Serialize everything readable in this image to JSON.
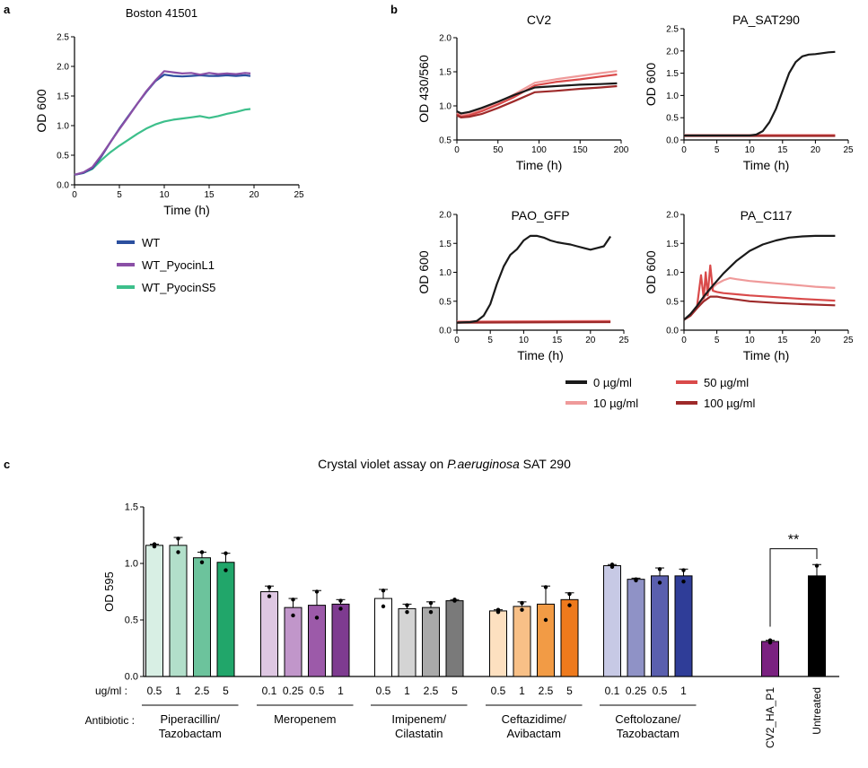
{
  "panel_letters": {
    "a": "a",
    "b": "b",
    "c": "c"
  },
  "chart_data": [
    {
      "id": "a",
      "type": "line",
      "title": "Boston 41501",
      "xlabel": "Time (h)",
      "ylabel": "OD 600",
      "xlim": [
        0,
        25
      ],
      "ylim": [
        0,
        2.5
      ],
      "xticks": [
        "0",
        "5",
        "10",
        "15",
        "20",
        "25"
      ],
      "yticks": [
        "0.0",
        "0.5",
        "1.0",
        "1.5",
        "2.0",
        "2.5"
      ],
      "legend_position": "below",
      "series": [
        {
          "name": "WT",
          "color": "#2b4f9e",
          "x": [
            0,
            1,
            2,
            3,
            4,
            5,
            6,
            7,
            8,
            9,
            10,
            11,
            12,
            13,
            14,
            15,
            16,
            17,
            18,
            19,
            19.6
          ],
          "y": [
            0.17,
            0.2,
            0.28,
            0.48,
            0.72,
            0.95,
            1.16,
            1.37,
            1.57,
            1.75,
            1.86,
            1.84,
            1.83,
            1.84,
            1.85,
            1.84,
            1.84,
            1.85,
            1.84,
            1.85,
            1.84
          ]
        },
        {
          "name": "WT_PyocinL1",
          "color": "#8a4fa6",
          "x": [
            0,
            1,
            2,
            3,
            4,
            5,
            6,
            7,
            8,
            9,
            10,
            11,
            12,
            13,
            14,
            15,
            16,
            17,
            18,
            19,
            19.6
          ],
          "y": [
            0.17,
            0.21,
            0.3,
            0.5,
            0.72,
            0.94,
            1.15,
            1.37,
            1.58,
            1.76,
            1.92,
            1.9,
            1.88,
            1.89,
            1.86,
            1.89,
            1.87,
            1.88,
            1.87,
            1.89,
            1.88
          ]
        },
        {
          "name": "WT_PyocinS5",
          "color": "#3dbf8b",
          "x": [
            0,
            1,
            2,
            3,
            4,
            5,
            6,
            7,
            8,
            9,
            10,
            11,
            12,
            13,
            14,
            15,
            16,
            17,
            18,
            19,
            19.6
          ],
          "y": [
            0.17,
            0.2,
            0.27,
            0.42,
            0.55,
            0.66,
            0.76,
            0.86,
            0.95,
            1.02,
            1.07,
            1.1,
            1.12,
            1.14,
            1.16,
            1.13,
            1.16,
            1.2,
            1.23,
            1.27,
            1.28
          ]
        }
      ]
    },
    {
      "id": "b1",
      "type": "line",
      "title": "CV2",
      "xlabel": "Time (h)",
      "ylabel": "OD 430/560",
      "xlim": [
        0,
        200
      ],
      "ylim": [
        0.5,
        2.0
      ],
      "xticks": [
        "0",
        "50",
        "100",
        "150",
        "200"
      ],
      "yticks": [
        "0.5",
        "1.0",
        "1.5",
        "2.0"
      ],
      "series": [
        {
          "name": "0 µg/ml",
          "color": "#1a1a1a",
          "x": [
            0,
            5,
            15,
            30,
            50,
            70,
            95,
            120,
            150,
            175,
            195
          ],
          "y": [
            0.92,
            0.89,
            0.91,
            0.97,
            1.06,
            1.16,
            1.27,
            1.29,
            1.31,
            1.32,
            1.33
          ]
        },
        {
          "name": "10 µg/ml",
          "color": "#ef9a9a",
          "x": [
            0,
            5,
            15,
            30,
            50,
            70,
            95,
            120,
            150,
            175,
            195
          ],
          "y": [
            0.9,
            0.86,
            0.88,
            0.95,
            1.05,
            1.17,
            1.34,
            1.39,
            1.44,
            1.48,
            1.51
          ]
        },
        {
          "name": "50 µg/ml",
          "color": "#d94a4a",
          "x": [
            0,
            5,
            15,
            30,
            50,
            70,
            95,
            120,
            150,
            175,
            195
          ],
          "y": [
            0.88,
            0.84,
            0.86,
            0.92,
            1.02,
            1.13,
            1.3,
            1.35,
            1.39,
            1.43,
            1.46
          ]
        },
        {
          "name": "100 µg/ml",
          "color": "#9e2a2a",
          "x": [
            0,
            5,
            15,
            30,
            50,
            70,
            95,
            120,
            150,
            175,
            195
          ],
          "y": [
            0.86,
            0.83,
            0.84,
            0.88,
            0.97,
            1.07,
            1.2,
            1.22,
            1.25,
            1.27,
            1.29
          ]
        }
      ]
    },
    {
      "id": "b2",
      "type": "line",
      "title": "PA_SAT290",
      "xlabel": "Time (h)",
      "ylabel": "OD 600",
      "xlim": [
        0,
        25
      ],
      "ylim": [
        0,
        2.5
      ],
      "xticks": [
        "0",
        "5",
        "10",
        "15",
        "20",
        "25"
      ],
      "yticks": [
        "0.0",
        "0.5",
        "1.0",
        "1.5",
        "2.0",
        "2.5"
      ],
      "series": [
        {
          "name": "0 µg/ml",
          "color": "#1a1a1a",
          "x": [
            0,
            5,
            10,
            11,
            12,
            13,
            14,
            15,
            16,
            17,
            18,
            19,
            20,
            21,
            22,
            23
          ],
          "y": [
            0.1,
            0.1,
            0.1,
            0.12,
            0.2,
            0.4,
            0.7,
            1.1,
            1.5,
            1.75,
            1.88,
            1.92,
            1.93,
            1.95,
            1.97,
            1.98
          ]
        },
        {
          "name": "10 µg/ml",
          "color": "#ef9a9a",
          "x": [
            0,
            23
          ],
          "y": [
            0.11,
            0.11
          ]
        },
        {
          "name": "50 µg/ml",
          "color": "#d94a4a",
          "x": [
            0,
            23
          ],
          "y": [
            0.1,
            0.1
          ]
        },
        {
          "name": "100 µg/ml",
          "color": "#9e2a2a",
          "x": [
            0,
            23
          ],
          "y": [
            0.09,
            0.09
          ]
        }
      ]
    },
    {
      "id": "b3",
      "type": "line",
      "title": "PAO_GFP",
      "xlabel": "Time (h)",
      "ylabel": "OD 600",
      "xlim": [
        0,
        25
      ],
      "ylim": [
        0,
        2.0
      ],
      "xticks": [
        "0",
        "5",
        "10",
        "15",
        "20",
        "25"
      ],
      "yticks": [
        "0.0",
        "0.5",
        "1.0",
        "1.5",
        "2.0"
      ],
      "series": [
        {
          "name": "0 µg/ml",
          "color": "#1a1a1a",
          "x": [
            0,
            2,
            3,
            4,
            5,
            6,
            7,
            8,
            9,
            10,
            11,
            12,
            13,
            14,
            15,
            16,
            17,
            18,
            19,
            20,
            21,
            22,
            23
          ],
          "y": [
            0.13,
            0.14,
            0.16,
            0.25,
            0.45,
            0.8,
            1.1,
            1.3,
            1.4,
            1.55,
            1.63,
            1.63,
            1.6,
            1.55,
            1.52,
            1.5,
            1.48,
            1.45,
            1.42,
            1.39,
            1.42,
            1.45,
            1.62
          ]
        },
        {
          "name": "10 µg/ml",
          "color": "#ef9a9a",
          "x": [
            0,
            23
          ],
          "y": [
            0.15,
            0.16
          ]
        },
        {
          "name": "50 µg/ml",
          "color": "#d94a4a",
          "x": [
            0,
            23
          ],
          "y": [
            0.14,
            0.15
          ]
        },
        {
          "name": "100 µg/ml",
          "color": "#9e2a2a",
          "x": [
            0,
            23
          ],
          "y": [
            0.13,
            0.14
          ]
        }
      ]
    },
    {
      "id": "b4",
      "type": "line",
      "title": "PA_C117",
      "xlabel": "Time (h)",
      "ylabel": "OD 600",
      "xlim": [
        0,
        25
      ],
      "ylim": [
        0,
        2.0
      ],
      "xticks": [
        "0",
        "5",
        "10",
        "15",
        "20",
        "25"
      ],
      "yticks": [
        "0.0",
        "0.5",
        "1.0",
        "1.5",
        "2.0"
      ],
      "series": [
        {
          "name": "0 µg/ml",
          "color": "#1a1a1a",
          "x": [
            0,
            1,
            2,
            3,
            4,
            5,
            6,
            8,
            10,
            12,
            14,
            16,
            18,
            20,
            22,
            23
          ],
          "y": [
            0.18,
            0.28,
            0.42,
            0.58,
            0.72,
            0.85,
            0.98,
            1.2,
            1.37,
            1.48,
            1.55,
            1.6,
            1.62,
            1.63,
            1.63,
            1.63
          ]
        },
        {
          "name": "10 µg/ml",
          "color": "#ef9a9a",
          "x": [
            0,
            1,
            2,
            3,
            4,
            5,
            6,
            7,
            8,
            10,
            12,
            14,
            16,
            18,
            20,
            23
          ],
          "y": [
            0.18,
            0.27,
            0.4,
            0.55,
            0.7,
            0.8,
            0.86,
            0.9,
            0.88,
            0.85,
            0.83,
            0.81,
            0.79,
            0.77,
            0.75,
            0.73
          ]
        },
        {
          "name": "50 µg/ml",
          "color": "#d94a4a",
          "x": [
            0,
            1,
            2,
            2.6,
            3,
            3.3,
            3.6,
            4,
            4.4,
            5,
            6,
            8,
            10,
            14,
            18,
            23
          ],
          "y": [
            0.18,
            0.26,
            0.42,
            0.95,
            0.55,
            1.0,
            0.6,
            1.12,
            0.68,
            0.66,
            0.64,
            0.62,
            0.6,
            0.57,
            0.54,
            0.51
          ]
        },
        {
          "name": "100 µg/ml",
          "color": "#9e2a2a",
          "x": [
            0,
            1,
            2,
            3,
            4,
            5,
            6,
            8,
            10,
            14,
            18,
            23
          ],
          "y": [
            0.18,
            0.25,
            0.38,
            0.5,
            0.58,
            0.58,
            0.56,
            0.53,
            0.5,
            0.47,
            0.45,
            0.43
          ]
        }
      ]
    },
    {
      "id": "c",
      "type": "bar",
      "title_prefix": "Crystal violet assay on ",
      "title_italic": "P.aeruginosa",
      "title_suffix": " SAT 290",
      "ylabel": "OD 595",
      "ylim": [
        0,
        1.5
      ],
      "yticks": [
        "0.0",
        "0.5",
        "1.0",
        "1.5"
      ],
      "conc_label": "ug/ml :",
      "antibiotic_label": "Antibiotic :",
      "significance": {
        "label": "**",
        "between": [
          "CV2_HA_P1",
          "Untreated"
        ]
      },
      "groups": [
        {
          "name_lines": [
            "Piperacillin/",
            "Tazobactam"
          ],
          "bars": [
            {
              "label": "0.5",
              "value": 1.16,
              "err": 0.01,
              "points": [
                1.15,
                1.17
              ],
              "color": "#d8efe4"
            },
            {
              "label": "1",
              "value": 1.16,
              "err": 0.07,
              "points": [
                1.1,
                1.22
              ],
              "color": "#b2dfca"
            },
            {
              "label": "2.5",
              "value": 1.05,
              "err": 0.05,
              "points": [
                1.01,
                1.1
              ],
              "color": "#6cc39c"
            },
            {
              "label": "5",
              "value": 1.01,
              "err": 0.08,
              "points": [
                0.94,
                1.09
              ],
              "color": "#21a66a"
            }
          ]
        },
        {
          "name_lines": [
            "Meropenem"
          ],
          "bars": [
            {
              "label": "0.1",
              "value": 0.75,
              "err": 0.05,
              "points": [
                0.71,
                0.79
              ],
              "color": "#dec7e2"
            },
            {
              "label": "0.25",
              "value": 0.61,
              "err": 0.08,
              "points": [
                0.54,
                0.68
              ],
              "color": "#c196ca"
            },
            {
              "label": "0.5",
              "value": 0.63,
              "err": 0.13,
              "points": [
                0.52,
                0.75
              ],
              "color": "#9c5aa9"
            },
            {
              "label": "1",
              "value": 0.64,
              "err": 0.04,
              "points": [
                0.6,
                0.67
              ],
              "color": "#7e3b90"
            }
          ]
        },
        {
          "name_lines": [
            "Imipenem/",
            "Cilastatin"
          ],
          "bars": [
            {
              "label": "0.5",
              "value": 0.69,
              "err": 0.08,
              "points": [
                0.62,
                0.76
              ],
              "color": "#ffffff"
            },
            {
              "label": "1",
              "value": 0.6,
              "err": 0.04,
              "points": [
                0.57,
                0.63
              ],
              "color": "#d4d4d4"
            },
            {
              "label": "2.5",
              "value": 0.61,
              "err": 0.05,
              "points": [
                0.57,
                0.65
              ],
              "color": "#a9a9a9"
            },
            {
              "label": "5",
              "value": 0.67,
              "err": 0.01,
              "points": [
                0.67,
                0.68
              ],
              "color": "#7a7a7a"
            }
          ]
        },
        {
          "name_lines": [
            "Ceftazidime/",
            "Avibactam"
          ],
          "bars": [
            {
              "label": "0.5",
              "value": 0.58,
              "err": 0.01,
              "points": [
                0.57,
                0.59
              ],
              "color": "#fde0c0"
            },
            {
              "label": "1",
              "value": 0.62,
              "err": 0.04,
              "points": [
                0.59,
                0.65
              ],
              "color": "#f8c087"
            },
            {
              "label": "2.5",
              "value": 0.64,
              "err": 0.16,
              "points": [
                0.5,
                0.79
              ],
              "color": "#f29b45"
            },
            {
              "label": "5",
              "value": 0.68,
              "err": 0.06,
              "points": [
                0.63,
                0.73
              ],
              "color": "#ee7a1d"
            }
          ]
        },
        {
          "name_lines": [
            "Ceftolozane/",
            "Tazobactam"
          ],
          "bars": [
            {
              "label": "0.1",
              "value": 0.98,
              "err": 0.01,
              "points": [
                0.97,
                0.99
              ],
              "color": "#c7c9e5"
            },
            {
              "label": "0.25",
              "value": 0.86,
              "err": 0.01,
              "points": [
                0.85,
                0.86
              ],
              "color": "#8f92c6"
            },
            {
              "label": "0.5",
              "value": 0.89,
              "err": 0.07,
              "points": [
                0.83,
                0.95
              ],
              "color": "#5a5fae"
            },
            {
              "label": "1",
              "value": 0.89,
              "err": 0.06,
              "points": [
                0.84,
                0.94
              ],
              "color": "#2f3d98"
            }
          ]
        },
        {
          "name_lines": [],
          "bars": [
            {
              "label": "CV2_HA_P1",
              "value": 0.31,
              "err": 0.01,
              "points": [
                0.3,
                0.32
              ],
              "color": "#7a2180",
              "rotated": true
            }
          ]
        },
        {
          "name_lines": [],
          "bars": [
            {
              "label": "Untreated",
              "value": 0.89,
              "err": 0.1,
              "points": [
                0.81,
                0.98
              ],
              "color": "#000000",
              "rotated": true
            }
          ]
        }
      ]
    }
  ]
}
